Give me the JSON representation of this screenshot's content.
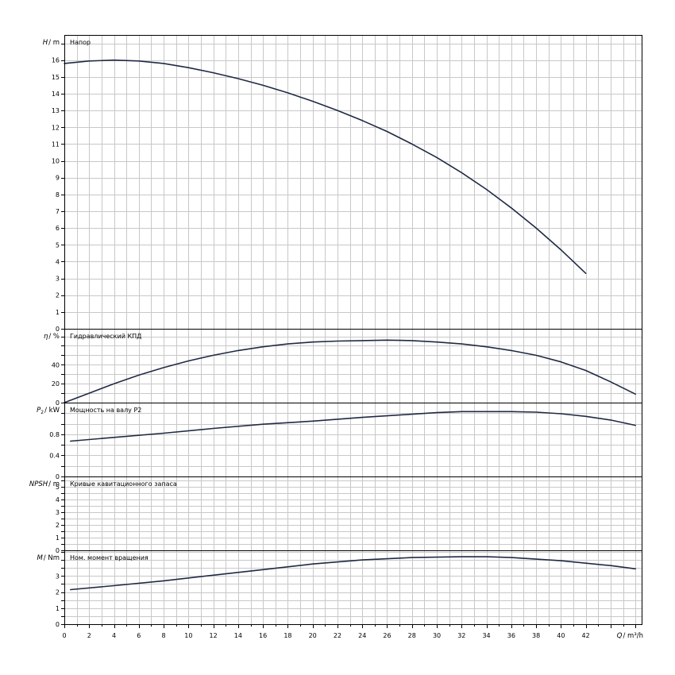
{
  "chart_data": [
    {
      "type": "line",
      "title": "Напор",
      "ylabel_var": "H",
      "ylabel_unit": "/ m",
      "ylim": [
        0,
        17.5
      ],
      "ticks": [
        0,
        1,
        2,
        3,
        4,
        5,
        6,
        7,
        8,
        9,
        10,
        11,
        12,
        13,
        14,
        15,
        16
      ],
      "tick_labels": [
        "0",
        "1",
        "2",
        "3",
        "4",
        "5",
        "6",
        "7",
        "8",
        "9",
        "10",
        "11",
        "12",
        "13",
        "14",
        "15",
        "16"
      ],
      "series": [
        {
          "x": [
            0,
            2,
            4,
            6,
            8,
            10,
            12,
            14,
            16,
            18,
            20,
            22,
            24,
            26,
            28,
            30,
            32,
            34,
            36,
            38,
            40,
            42
          ],
          "y": [
            15.8,
            15.95,
            16.0,
            15.95,
            15.8,
            15.55,
            15.25,
            14.9,
            14.5,
            14.05,
            13.55,
            13.0,
            12.4,
            11.75,
            11.0,
            10.2,
            9.3,
            8.3,
            7.2,
            6.0,
            4.7,
            3.3
          ]
        }
      ]
    },
    {
      "type": "line",
      "title": "Гидравлический КПД",
      "ylabel_var": "η",
      "ylabel_unit": "/ %",
      "ylim": [
        0,
        78
      ],
      "ticks": [
        0,
        20,
        40
      ],
      "tick_labels": [
        "0",
        "20",
        "40"
      ],
      "series": [
        {
          "x": [
            0,
            2,
            4,
            6,
            8,
            10,
            12,
            14,
            16,
            18,
            20,
            22,
            24,
            26,
            28,
            30,
            32,
            34,
            36,
            38,
            40,
            42,
            44,
            46
          ],
          "y": [
            0,
            10,
            20,
            29,
            37,
            44,
            50,
            55,
            59,
            62,
            64,
            65,
            65.5,
            66,
            65.5,
            64,
            62,
            59,
            55,
            50,
            43,
            34,
            22,
            9
          ]
        }
      ]
    },
    {
      "type": "line",
      "title": "Мощность на валу P2",
      "ylabel_var": "P",
      "ylabel_sub": "2",
      "ylabel_unit": "/ kW",
      "ylim": [
        0,
        1.4
      ],
      "ticks": [
        0,
        0.4,
        0.8
      ],
      "tick_labels": [
        "0",
        "0.4",
        "0.8"
      ],
      "series": [
        {
          "x": [
            0.5,
            4,
            8,
            12,
            16,
            20,
            24,
            28,
            30,
            32,
            34,
            36,
            38,
            40,
            42,
            44,
            46
          ],
          "y": [
            0.67,
            0.74,
            0.82,
            0.91,
            0.99,
            1.05,
            1.12,
            1.18,
            1.21,
            1.23,
            1.23,
            1.23,
            1.22,
            1.19,
            1.14,
            1.07,
            0.97
          ]
        }
      ]
    },
    {
      "type": "line",
      "title": "Кривые кавитационного запаса",
      "ylabel_var": "NPSH",
      "ylabel_unit": "/ m",
      "ylim": [
        0,
        5.8
      ],
      "ticks": [
        0,
        1,
        2,
        3,
        4,
        5
      ],
      "tick_labels": [
        "0",
        "1",
        "2",
        "3",
        "4",
        "5"
      ],
      "series": []
    },
    {
      "type": "line",
      "title": "Ном. момент вращения",
      "ylabel_var": "M",
      "ylabel_unit": "/ Nm",
      "ylim": [
        0,
        4.6
      ],
      "ticks": [
        0,
        1,
        2,
        3
      ],
      "tick_labels": [
        "0",
        "1",
        "2",
        "3"
      ],
      "series": [
        {
          "x": [
            0.5,
            4,
            8,
            12,
            16,
            20,
            24,
            28,
            32,
            34,
            36,
            38,
            40,
            42,
            44,
            46
          ],
          "y": [
            2.15,
            2.4,
            2.7,
            3.05,
            3.4,
            3.75,
            4.0,
            4.15,
            4.2,
            4.2,
            4.15,
            4.05,
            3.95,
            3.8,
            3.65,
            3.45
          ]
        }
      ]
    }
  ],
  "x_axis": {
    "label_var": "Q",
    "label_unit": "/ m³/h",
    "range": [
      0,
      46.5
    ],
    "ticks": [
      0,
      2,
      4,
      6,
      8,
      10,
      12,
      14,
      16,
      18,
      20,
      22,
      24,
      26,
      28,
      30,
      32,
      34,
      36,
      38,
      40,
      42
    ],
    "tick_labels": [
      "0",
      "2",
      "4",
      "6",
      "8",
      "10",
      "12",
      "14",
      "16",
      "18",
      "20",
      "22",
      "24",
      "26",
      "28",
      "30",
      "32",
      "34",
      "36",
      "38",
      "40",
      "42"
    ]
  }
}
